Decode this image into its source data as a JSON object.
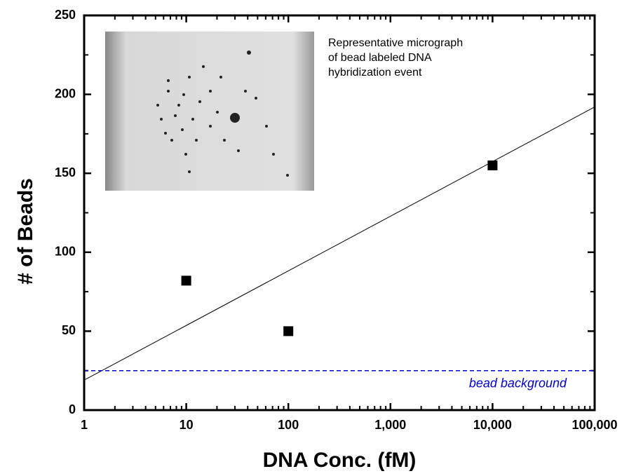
{
  "chart_data": {
    "type": "scatter",
    "xlabel": "DNA Conc. (fM)",
    "ylabel": "# of Beads",
    "xscale": "log",
    "xlim": [
      1,
      100000
    ],
    "ylim": [
      0,
      250
    ],
    "xticks": [
      1,
      10,
      100,
      {
        "value": 1000,
        "label": "1,000"
      },
      {
        "value": 10000,
        "label": "10,000"
      },
      {
        "value": 100000,
        "label": "100,000"
      }
    ],
    "xminorticks": [
      2,
      3,
      4,
      5,
      6,
      7,
      8,
      9,
      20,
      30,
      40,
      50,
      60,
      70,
      80,
      90,
      200,
      300,
      400,
      500,
      600,
      700,
      800,
      900,
      2000,
      3000,
      4000,
      5000,
      6000,
      7000,
      8000,
      9000,
      20000,
      30000,
      40000,
      50000,
      60000,
      70000,
      80000,
      90000
    ],
    "yticks": [
      0,
      50,
      100,
      150,
      200,
      250
    ],
    "yminorticks": [
      25,
      75,
      125,
      175,
      225
    ],
    "series": [
      {
        "type": "scatter",
        "marker": "square",
        "color": "#000000",
        "x": [
          10,
          100,
          10000
        ],
        "values": [
          82,
          50,
          155
        ]
      },
      {
        "type": "line",
        "color": "#000000",
        "x": [
          1,
          100000
        ],
        "values": [
          19,
          192
        ]
      },
      {
        "type": "line",
        "style": "dashed",
        "color": "#0000cc",
        "x": [
          1,
          100000
        ],
        "values": [
          25,
          25
        ],
        "label": "bead background"
      }
    ],
    "annotations": [
      "Representative micrograph",
      "of bead labeled DNA",
      "hybridization event"
    ]
  }
}
